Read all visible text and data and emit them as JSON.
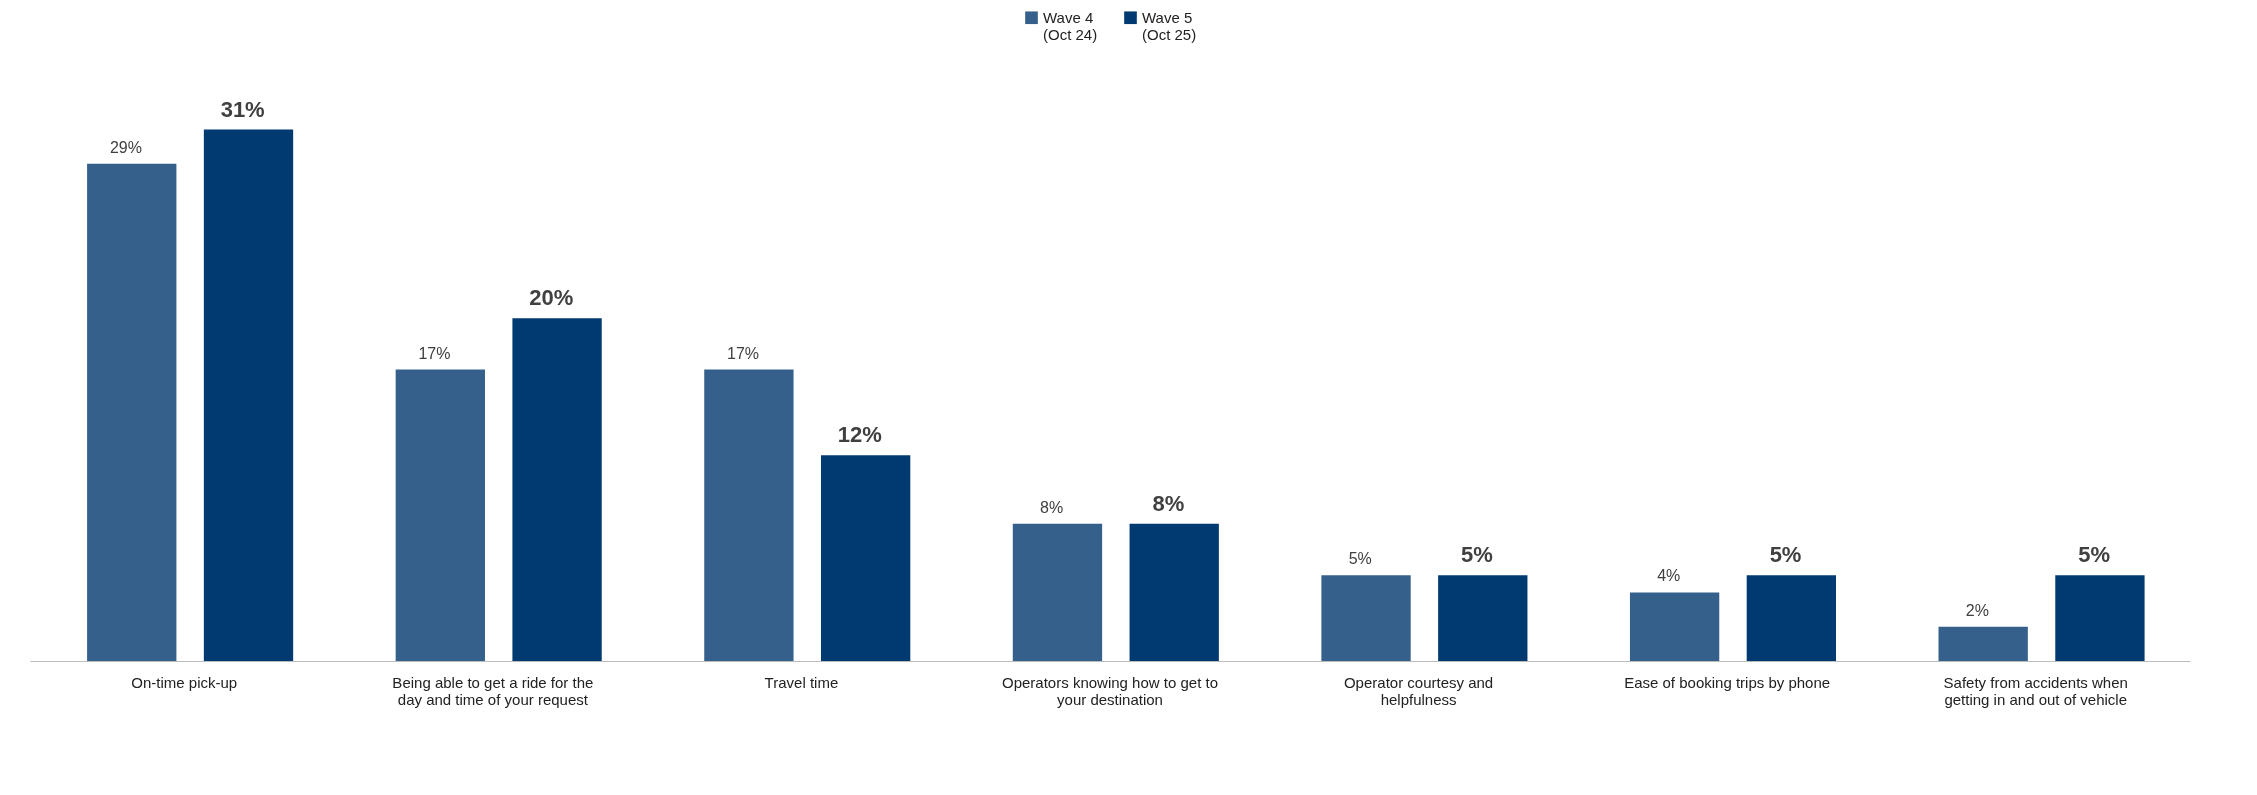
{
  "chart_data": {
    "type": "bar",
    "categories": [
      "On-time pick-up",
      "Being able to get a ride for the day and time of your request",
      "Travel time",
      "Operators knowing how to get to your destination",
      "Operator courtesy and helpfulness",
      "Ease of booking trips by phone",
      "Safety from accidents when getting in and out of vehicle"
    ],
    "series": [
      {
        "name": "Wave 4 (Oct 24)",
        "color": "#35608c",
        "values": [
          29,
          17,
          17,
          8,
          5,
          4,
          2
        ],
        "value_labels": [
          "29%",
          "17%",
          "17%",
          "8%",
          "5%",
          "4%",
          "2%"
        ]
      },
      {
        "name": "Wave 5 (Oct 25)",
        "color": "#003a70",
        "values": [
          31,
          20,
          12,
          8,
          5,
          5,
          5
        ],
        "value_labels": [
          "31%",
          "20%",
          "12%",
          "8%",
          "5%",
          "5%",
          "5%"
        ]
      }
    ],
    "legend": "top",
    "tick_labels": "x"
  }
}
